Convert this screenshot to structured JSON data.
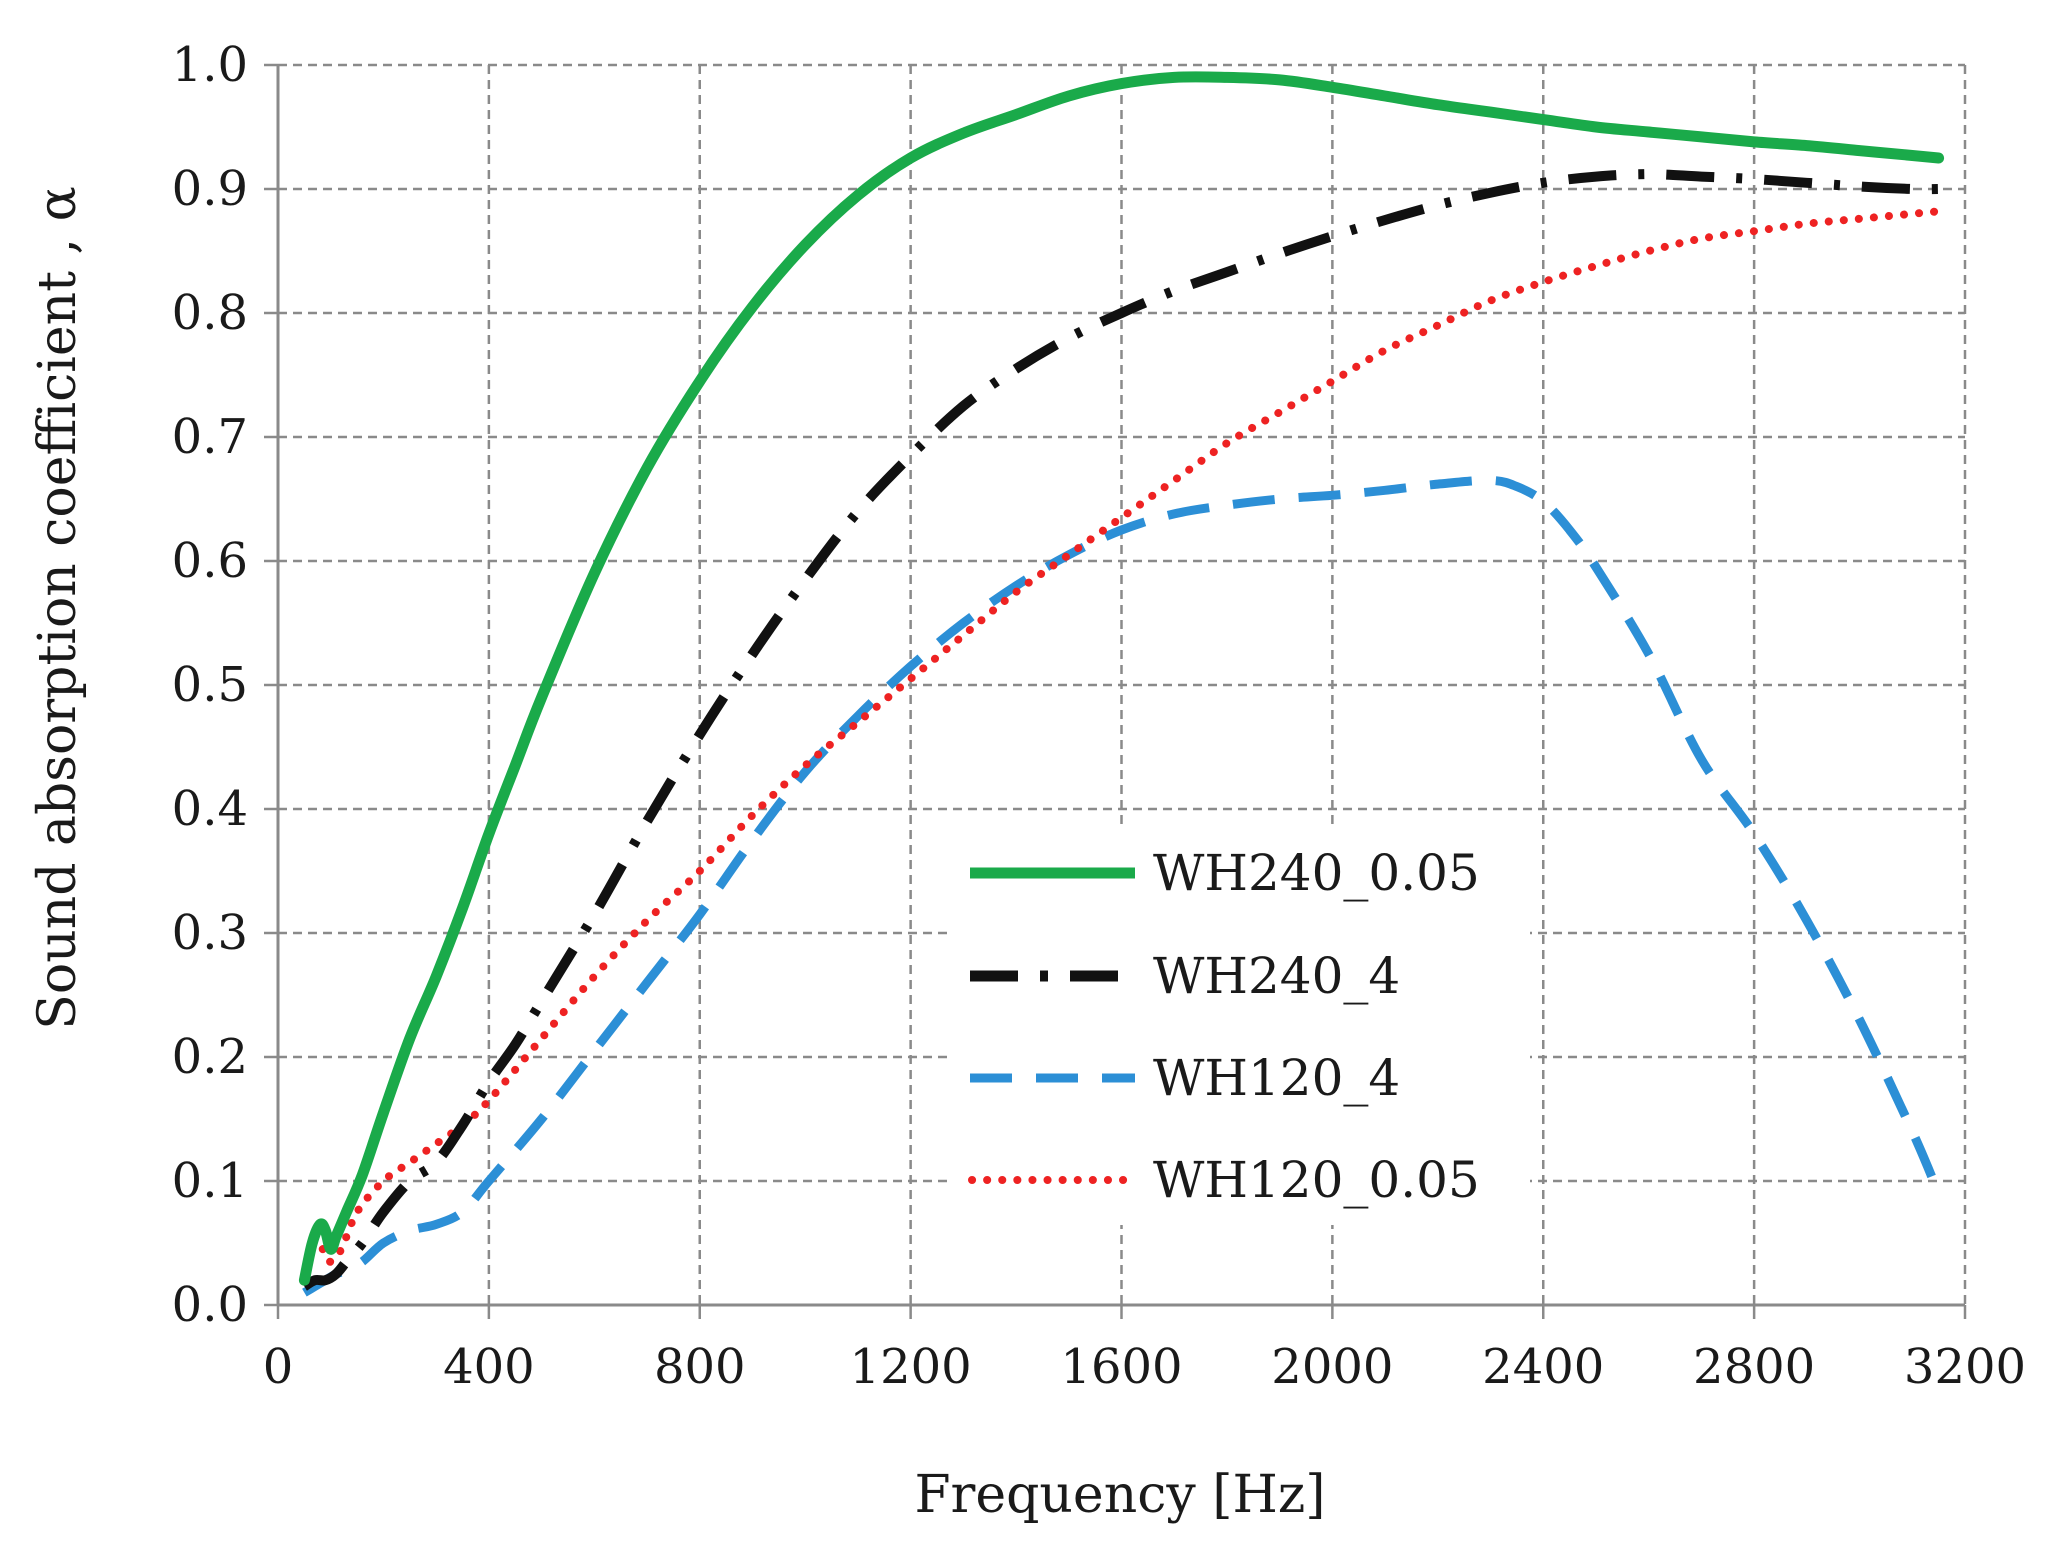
{
  "chart_data": {
    "type": "line",
    "title": "",
    "xlabel": "Frequency [Hz]",
    "ylabel": "Sound absorption coefficient , α",
    "xlim": [
      0,
      3200
    ],
    "ylim": [
      0,
      1.0
    ],
    "x_ticks": [
      "0",
      "400",
      "800",
      "1200",
      "1600",
      "2000",
      "2400",
      "2800",
      "3200"
    ],
    "y_ticks": [
      "0.0",
      "0.1",
      "0.2",
      "0.3",
      "0.4",
      "0.5",
      "0.6",
      "0.7",
      "0.8",
      "0.9",
      "1.0"
    ],
    "grid": true,
    "legend_position": "center-right",
    "series": [
      {
        "name": "WH240_0.05",
        "color": "#1aaa4a",
        "style": "solid",
        "x": [
          50,
          65,
          80,
          90,
          100,
          110,
          130,
          160,
          200,
          250,
          300,
          350,
          400,
          450,
          500,
          600,
          700,
          800,
          900,
          1000,
          1100,
          1200,
          1300,
          1400,
          1500,
          1600,
          1700,
          1800,
          1900,
          2000,
          2100,
          2200,
          2300,
          2400,
          2500,
          2600,
          2700,
          2800,
          2900,
          3000,
          3100,
          3150
        ],
        "y": [
          0.02,
          0.05,
          0.065,
          0.06,
          0.045,
          0.055,
          0.075,
          0.105,
          0.155,
          0.215,
          0.265,
          0.32,
          0.38,
          0.435,
          0.49,
          0.59,
          0.675,
          0.745,
          0.805,
          0.855,
          0.895,
          0.925,
          0.945,
          0.96,
          0.975,
          0.985,
          0.99,
          0.99,
          0.988,
          0.982,
          0.975,
          0.968,
          0.962,
          0.956,
          0.95,
          0.946,
          0.942,
          0.938,
          0.935,
          0.931,
          0.927,
          0.925
        ]
      },
      {
        "name": "WH240_4",
        "color": "#111111",
        "style": "dashdot",
        "x": [
          50,
          70,
          90,
          110,
          130,
          160,
          200,
          250,
          300,
          350,
          400,
          450,
          500,
          600,
          700,
          800,
          900,
          1000,
          1100,
          1200,
          1300,
          1400,
          1500,
          1600,
          1700,
          1800,
          1900,
          2000,
          2100,
          2200,
          2300,
          2400,
          2500,
          2600,
          2700,
          2800,
          2900,
          3000,
          3100,
          3150
        ],
        "y": [
          0.015,
          0.02,
          0.02,
          0.025,
          0.035,
          0.05,
          0.075,
          0.1,
          0.115,
          0.145,
          0.18,
          0.21,
          0.245,
          0.315,
          0.39,
          0.46,
          0.525,
          0.585,
          0.64,
          0.685,
          0.725,
          0.755,
          0.78,
          0.8,
          0.818,
          0.833,
          0.848,
          0.862,
          0.875,
          0.887,
          0.897,
          0.905,
          0.91,
          0.912,
          0.91,
          0.908,
          0.905,
          0.902,
          0.9,
          0.9
        ]
      },
      {
        "name": "WH120_4",
        "color": "#2c8fd6",
        "style": "dashed",
        "x": [
          50,
          70,
          90,
          110,
          130,
          160,
          200,
          250,
          300,
          350,
          400,
          500,
          600,
          700,
          800,
          900,
          1000,
          1100,
          1200,
          1300,
          1400,
          1500,
          1600,
          1700,
          1800,
          1900,
          2000,
          2100,
          2200,
          2300,
          2350,
          2400,
          2450,
          2500,
          2600,
          2700,
          2800,
          2900,
          3000,
          3100,
          3150
        ],
        "y": [
          0.01,
          0.015,
          0.02,
          0.025,
          0.028,
          0.035,
          0.05,
          0.06,
          0.065,
          0.075,
          0.1,
          0.15,
          0.205,
          0.26,
          0.315,
          0.375,
          0.43,
          0.475,
          0.515,
          0.55,
          0.58,
          0.605,
          0.625,
          0.638,
          0.645,
          0.65,
          0.653,
          0.657,
          0.662,
          0.665,
          0.66,
          0.648,
          0.625,
          0.595,
          0.525,
          0.44,
          0.38,
          0.31,
          0.23,
          0.14,
          0.09
        ]
      },
      {
        "name": "WH120_0.05",
        "color": "#ee2222",
        "style": "dotted",
        "x": [
          50,
          60,
          70,
          80,
          90,
          100,
          120,
          150,
          200,
          250,
          300,
          350,
          400,
          500,
          600,
          700,
          800,
          900,
          1000,
          1100,
          1200,
          1300,
          1400,
          1500,
          1600,
          1700,
          1800,
          1900,
          2000,
          2100,
          2200,
          2300,
          2400,
          2500,
          2600,
          2700,
          2800,
          2900,
          3000,
          3100,
          3150
        ],
        "y": [
          0.02,
          0.045,
          0.055,
          0.05,
          0.04,
          0.035,
          0.045,
          0.075,
          0.1,
          0.115,
          0.13,
          0.145,
          0.165,
          0.215,
          0.265,
          0.31,
          0.35,
          0.395,
          0.435,
          0.47,
          0.505,
          0.54,
          0.575,
          0.605,
          0.635,
          0.665,
          0.695,
          0.72,
          0.745,
          0.77,
          0.79,
          0.81,
          0.825,
          0.838,
          0.85,
          0.86,
          0.866,
          0.872,
          0.876,
          0.88,
          0.882
        ]
      }
    ]
  }
}
